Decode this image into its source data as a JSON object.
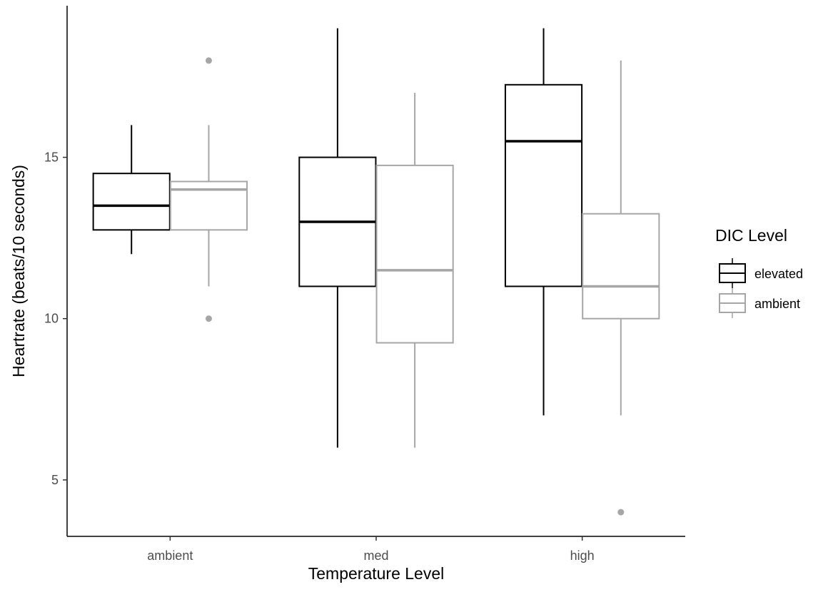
{
  "chart_data": {
    "type": "boxplot",
    "xlabel": "Temperature Level",
    "ylabel": "Heartrate (beats/10 seconds)",
    "categories": [
      "ambient",
      "med",
      "high"
    ],
    "yticks": [
      5,
      10,
      15
    ],
    "ylim": [
      3.25,
      19.7
    ],
    "grid": false,
    "legend": {
      "title": "DIC Level",
      "placement": "right"
    },
    "series": [
      {
        "name": "elevated",
        "color": "#000000",
        "boxes": [
          {
            "category": "ambient",
            "whisker_low": 12,
            "q1": 12.75,
            "median": 13.5,
            "q3": 14.5,
            "whisker_high": 16,
            "outliers": []
          },
          {
            "category": "med",
            "whisker_low": 6,
            "q1": 11,
            "median": 13,
            "q3": 15,
            "whisker_high": 19,
            "outliers": []
          },
          {
            "category": "high",
            "whisker_low": 7,
            "q1": 11,
            "median": 15.5,
            "q3": 17.25,
            "whisker_high": 19,
            "outliers": []
          }
        ]
      },
      {
        "name": "ambient",
        "color": "#a6a6a6",
        "boxes": [
          {
            "category": "ambient",
            "whisker_low": 11,
            "q1": 12.75,
            "median": 14,
            "q3": 14.25,
            "whisker_high": 16,
            "outliers": [
              10,
              18
            ]
          },
          {
            "category": "med",
            "whisker_low": 6,
            "q1": 9.25,
            "median": 11.5,
            "q3": 14.75,
            "whisker_high": 17,
            "outliers": []
          },
          {
            "category": "high",
            "whisker_low": 7,
            "q1": 10,
            "median": 11,
            "q3": 13.25,
            "whisker_high": 18,
            "outliers": [
              4
            ]
          }
        ]
      }
    ]
  }
}
